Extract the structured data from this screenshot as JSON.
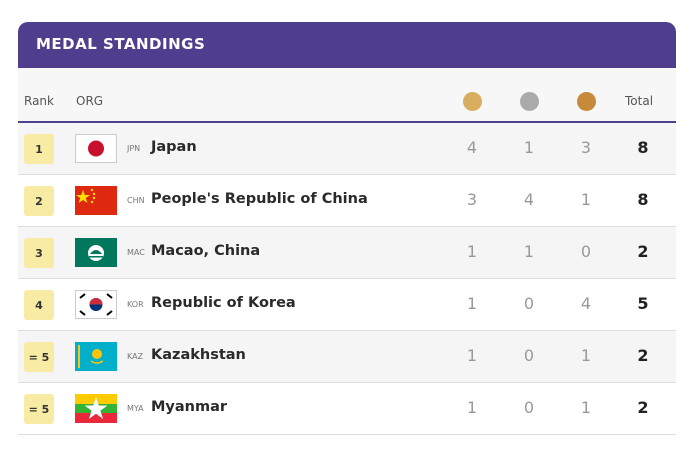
{
  "header": {
    "title": "MEDAL STANDINGS"
  },
  "table": {
    "columns": [
      "Rank",
      "ORG",
      "Total"
    ],
    "rows": [
      {
        "rank": "1",
        "code": "JPN",
        "name": "Japan",
        "gold": 4,
        "silver": 1,
        "bronze": 3,
        "total": 8
      },
      {
        "rank": "2",
        "code": "CHN",
        "name": "People's Republic of China",
        "gold": 3,
        "silver": 4,
        "bronze": 1,
        "total": 8
      },
      {
        "rank": "3",
        "code": "MAC",
        "name": "Macao, China",
        "gold": 1,
        "silver": 1,
        "bronze": 0,
        "total": 2
      },
      {
        "rank": "4",
        "code": "KOR",
        "name": "Republic of Korea",
        "gold": 1,
        "silver": 0,
        "bronze": 4,
        "total": 5
      },
      {
        "rank": "= 5",
        "code": "KAZ",
        "name": "Kazakhstan",
        "gold": 1,
        "silver": 0,
        "bronze": 1,
        "total": 2
      },
      {
        "rank": "= 5",
        "code": "MYA",
        "name": "Myanmar",
        "gold": 1,
        "silver": 0,
        "bronze": 1,
        "total": 2
      }
    ]
  }
}
